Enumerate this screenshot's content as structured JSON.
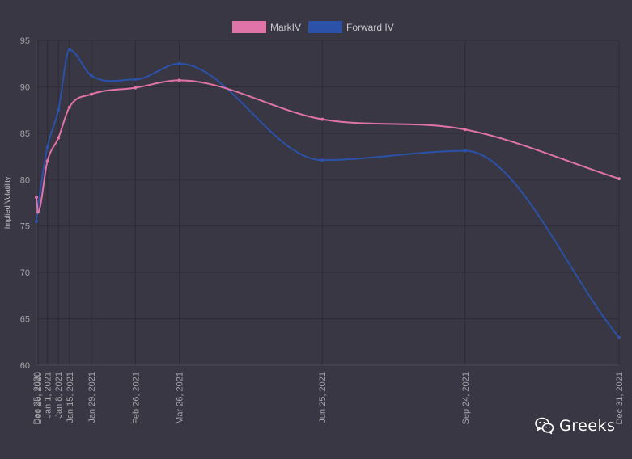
{
  "chart_data": {
    "type": "line",
    "title": "",
    "xlabel": "",
    "ylabel": "Implied Volatility",
    "ylim": [
      60,
      95
    ],
    "yticks": [
      60,
      65,
      70,
      75,
      80,
      85,
      90,
      95
    ],
    "grid": true,
    "legend_position": "top-center",
    "x": [
      "2020-12-25",
      "2020-12-26",
      "2021-01-01",
      "2021-01-08",
      "2021-01-15",
      "2021-01-29",
      "2021-02-26",
      "2021-03-26",
      "2021-06-25",
      "2021-09-24",
      "2021-12-31"
    ],
    "x_tick_labels": [
      "Dec 25, 2020",
      "Dec 26, 2020",
      "Jan 1, 2021",
      "Jan 8, 2021",
      "Jan 15, 2021",
      "Jan 29, 2021",
      "Feb 26, 2021",
      "Mar 26, 2021",
      "Jun 25, 2021",
      "Sep 24, 2021",
      "Dec 31, 2021"
    ],
    "series": [
      {
        "name": "MarkIV",
        "color": "#e074a8",
        "values": [
          78.1,
          76.5,
          82.0,
          84.5,
          87.8,
          89.2,
          89.9,
          90.7,
          86.5,
          85.4,
          80.1
        ]
      },
      {
        "name": "Forward IV",
        "color": "#2b51a8",
        "values": [
          75.5,
          77.0,
          83.5,
          87.5,
          94.0,
          91.2,
          90.8,
          92.5,
          82.1,
          83.1,
          63.0
        ]
      }
    ]
  },
  "watermark": {
    "text": "Greeks",
    "icon": "wechat-icon"
  }
}
